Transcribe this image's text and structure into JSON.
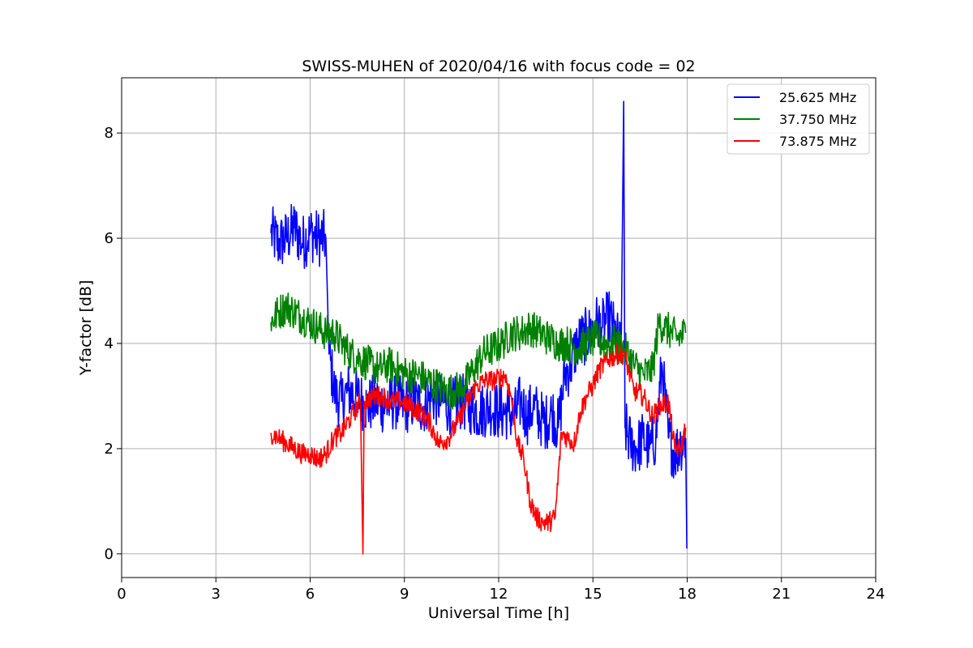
{
  "chart_data": {
    "type": "line",
    "title": "SWISS-MUHEN of 2020/04/16 with focus code = 02",
    "xlabel": "Universal Time [h]",
    "ylabel": "Y-factor [dB]",
    "xlim": [
      0,
      24
    ],
    "ylim": [
      -0.45,
      9.05
    ],
    "xticks": [
      0,
      3,
      6,
      9,
      12,
      15,
      18,
      21,
      24
    ],
    "yticks": [
      0,
      2,
      4,
      6,
      8
    ],
    "grid": true,
    "legend_position": "top-right",
    "series": [
      {
        "name": "25.625 MHz",
        "color": "#0000ff",
        "x": [
          4.75,
          5.0,
          5.25,
          5.5,
          5.75,
          6.0,
          6.25,
          6.5,
          6.6,
          6.8,
          7.0,
          7.2,
          7.5,
          7.8,
          8.1,
          8.4,
          8.7,
          9.0,
          9.3,
          9.6,
          9.9,
          10.2,
          10.5,
          10.8,
          11.1,
          11.4,
          11.7,
          12.0,
          12.3,
          12.5,
          12.7,
          12.9,
          13.1,
          13.3,
          13.5,
          13.7,
          13.9,
          14.1,
          14.3,
          14.5,
          14.7,
          14.9,
          15.1,
          15.3,
          15.5,
          15.7,
          15.9,
          15.98,
          16.02,
          16.2,
          16.4,
          16.6,
          16.8,
          17.0,
          17.2,
          17.4,
          17.6,
          17.8,
          17.95,
          17.99
        ],
        "y": [
          6.1,
          5.9,
          6.0,
          6.2,
          5.9,
          6.1,
          6.0,
          6.0,
          3.8,
          3.0,
          2.9,
          3.1,
          3.0,
          2.8,
          2.9,
          2.8,
          2.9,
          2.8,
          2.9,
          2.8,
          3.0,
          2.9,
          2.8,
          2.9,
          2.8,
          2.7,
          2.8,
          2.7,
          2.7,
          2.6,
          2.9,
          2.6,
          2.8,
          2.6,
          2.5,
          2.7,
          2.4,
          3.4,
          3.6,
          4.0,
          4.1,
          4.2,
          4.4,
          4.3,
          4.5,
          4.2,
          3.9,
          8.6,
          2.4,
          2.1,
          2.0,
          2.2,
          2.0,
          2.2,
          3.6,
          2.2,
          1.9,
          2.1,
          2.2,
          0.1
        ]
      },
      {
        "name": "37.750 MHz",
        "color": "#008000",
        "x": [
          4.75,
          5.0,
          5.25,
          5.5,
          5.75,
          6.0,
          6.25,
          6.5,
          6.75,
          7.0,
          7.3,
          7.6,
          7.9,
          8.2,
          8.5,
          8.8,
          9.1,
          9.4,
          9.7,
          10.0,
          10.3,
          10.6,
          10.9,
          11.2,
          11.5,
          11.8,
          12.1,
          12.4,
          12.7,
          13.0,
          13.3,
          13.6,
          13.9,
          14.2,
          14.5,
          14.8,
          15.1,
          15.4,
          15.7,
          16.0,
          16.3,
          16.6,
          16.9,
          17.1,
          17.3,
          17.5,
          17.7,
          17.95
        ],
        "y": [
          4.4,
          4.6,
          4.7,
          4.6,
          4.5,
          4.4,
          4.3,
          4.2,
          4.2,
          4.0,
          3.8,
          3.7,
          3.6,
          3.5,
          3.6,
          3.5,
          3.4,
          3.4,
          3.3,
          3.2,
          3.1,
          3.1,
          3.2,
          3.5,
          3.8,
          3.9,
          4.0,
          4.2,
          4.2,
          4.3,
          4.2,
          4.1,
          4.0,
          4.0,
          3.9,
          4.0,
          4.1,
          4.0,
          4.0,
          3.9,
          3.6,
          3.4,
          3.5,
          4.4,
          4.3,
          4.2,
          4.1,
          4.2
        ]
      },
      {
        "name": "73.875 MHz",
        "color": "#ff0000",
        "x": [
          4.75,
          5.0,
          5.25,
          5.5,
          5.75,
          6.0,
          6.25,
          6.5,
          6.75,
          7.0,
          7.3,
          7.6,
          7.68,
          7.72,
          8.0,
          8.3,
          8.6,
          8.9,
          9.2,
          9.5,
          9.8,
          10.1,
          10.4,
          10.7,
          11.0,
          11.3,
          11.6,
          11.9,
          12.2,
          12.4,
          12.6,
          12.8,
          13.0,
          13.2,
          13.4,
          13.6,
          13.8,
          14.0,
          14.2,
          14.4,
          14.6,
          14.8,
          15.0,
          15.2,
          15.5,
          15.8,
          16.0,
          16.3,
          16.6,
          16.9,
          17.1,
          17.4,
          17.6,
          17.8,
          17.95
        ],
        "y": [
          2.3,
          2.2,
          2.1,
          2.0,
          1.9,
          1.9,
          1.8,
          1.9,
          2.2,
          2.3,
          2.6,
          2.9,
          0.0,
          2.9,
          3.0,
          3.0,
          2.9,
          2.9,
          2.8,
          2.7,
          2.5,
          2.1,
          2.2,
          2.5,
          2.9,
          3.2,
          3.3,
          3.3,
          3.4,
          3.0,
          2.1,
          1.8,
          1.0,
          0.7,
          0.6,
          0.6,
          0.7,
          2.3,
          2.2,
          2.1,
          2.7,
          3.0,
          3.2,
          3.5,
          3.7,
          3.8,
          3.8,
          3.1,
          3.0,
          2.6,
          2.8,
          2.9,
          2.0,
          2.0,
          2.4
        ]
      }
    ]
  }
}
